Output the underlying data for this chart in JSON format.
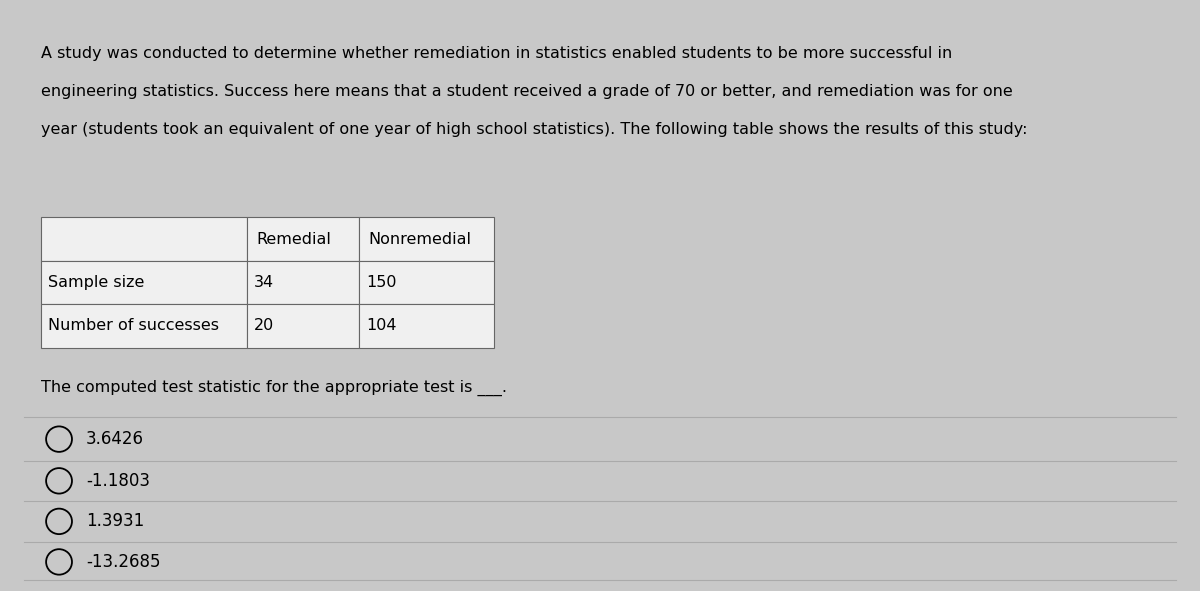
{
  "background_color": "#c8c8c8",
  "panel_color": "#efefef",
  "text_color": "#000000",
  "paragraph_lines": [
    "A study was conducted to determine whether remediation in statistics enabled students to be more successful in",
    "engineering statistics. Success here means that a student received a grade of 70 or better, and remediation was for one",
    "year (students took an equivalent of one year of high school statistics). The following table shows the results of this study:"
  ],
  "table_headers": [
    "",
    "Remedial",
    "Nonremedial"
  ],
  "table_rows": [
    [
      "Sample size",
      "34",
      "150"
    ],
    [
      "Number of successes",
      "20",
      "104"
    ]
  ],
  "question_text": "The computed test statistic for the appropriate test is ___.",
  "options": [
    "3.6426",
    "-1.1803",
    "1.3931",
    "-13.2685"
  ],
  "font_size_paragraph": 11.5,
  "font_size_table": 11.5,
  "font_size_question": 11.5,
  "font_size_options": 12
}
